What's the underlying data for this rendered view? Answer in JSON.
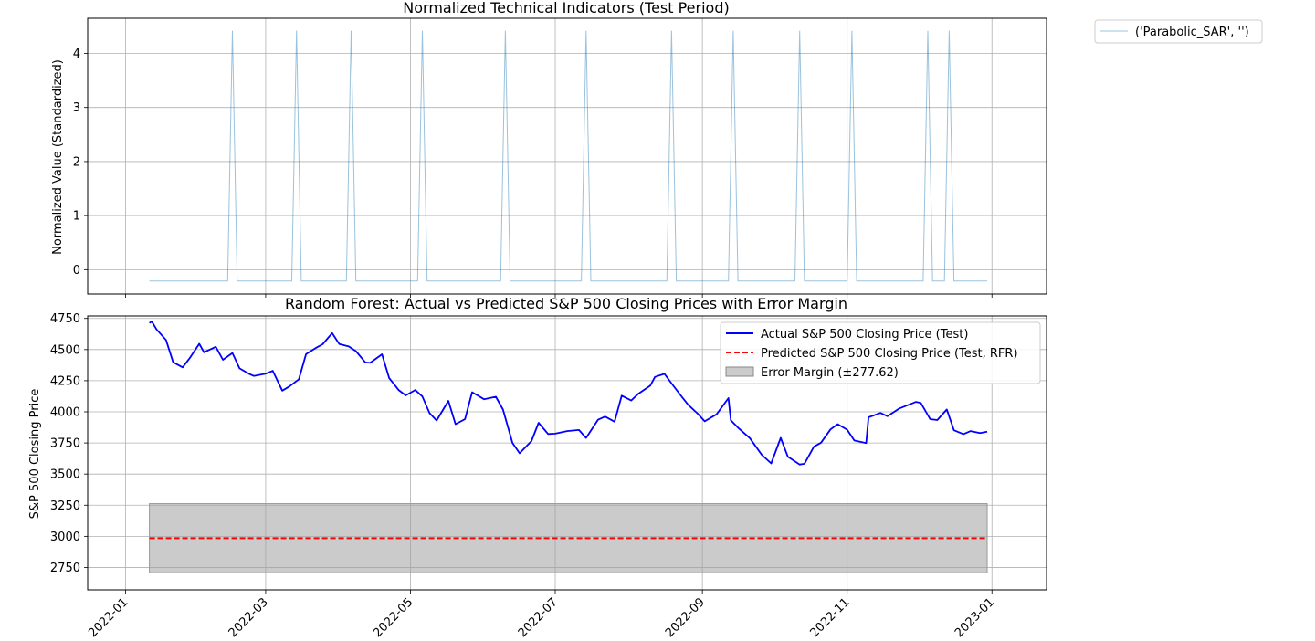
{
  "chart_data": [
    {
      "type": "line",
      "title": "Normalized Technical Indicators (Test Period)",
      "xlabel": "",
      "ylabel": "Normalized Value (Standardized)",
      "ylim": [
        -0.45,
        4.65
      ],
      "grid": true,
      "legend": "outside-top-right",
      "y_ticks": [
        0,
        1,
        2,
        3,
        4
      ],
      "y_tick_labels": [
        "0",
        "1",
        "2",
        "3",
        "4"
      ],
      "series": [
        {
          "name": "('Parabolic_SAR', '')",
          "color": "#1f77b4",
          "baseline": -0.21,
          "peak": 4.42,
          "spike_dates": [
            "2022-02-15",
            "2022-03-14",
            "2022-04-06",
            "2022-05-06",
            "2022-06-10",
            "2022-07-14",
            "2022-08-19",
            "2022-09-14",
            "2022-10-12",
            "2022-11-03",
            "2022-12-05",
            "2022-12-14"
          ],
          "x_start": "2022-01-11",
          "x_end": "2022-12-30"
        }
      ]
    },
    {
      "type": "line",
      "title": "Random Forest: Actual vs Predicted S&P 500 Closing Prices with Error Margin",
      "xlabel": "",
      "ylabel": "S&P 500 Closing Price",
      "ylim": [
        2570,
        4770
      ],
      "grid": true,
      "legend": "top-right",
      "y_ticks": [
        2750,
        3000,
        3250,
        3500,
        3750,
        4000,
        4250,
        4500,
        4750
      ],
      "y_tick_labels": [
        "2750",
        "3000",
        "3250",
        "3500",
        "3750",
        "4000",
        "4250",
        "4500",
        "4750"
      ],
      "x_ticks": [
        "2022-01-01",
        "2022-03-01",
        "2022-05-01",
        "2022-07-01",
        "2022-09-01",
        "2022-11-01",
        "2023-01-01"
      ],
      "x_tick_labels": [
        "2022-01",
        "2022-03",
        "2022-05",
        "2022-07",
        "2022-09",
        "2022-11",
        "2023-01"
      ],
      "x_start": "2022-01-11",
      "x_end": "2022-12-30",
      "series": [
        {
          "name": "Actual S&P 500 Closing Price (Test)",
          "color": "#0000ff",
          "style": "solid",
          "x": [
            "2022-01-11",
            "2022-01-12",
            "2022-01-14",
            "2022-01-18",
            "2022-01-21",
            "2022-01-25",
            "2022-01-28",
            "2022-02-01",
            "2022-02-03",
            "2022-02-08",
            "2022-02-11",
            "2022-02-15",
            "2022-02-18",
            "2022-02-22",
            "2022-02-24",
            "2022-03-01",
            "2022-03-04",
            "2022-03-08",
            "2022-03-11",
            "2022-03-15",
            "2022-03-18",
            "2022-03-22",
            "2022-03-25",
            "2022-03-29",
            "2022-04-01",
            "2022-04-05",
            "2022-04-08",
            "2022-04-12",
            "2022-04-14",
            "2022-04-19",
            "2022-04-22",
            "2022-04-26",
            "2022-04-29",
            "2022-05-03",
            "2022-05-06",
            "2022-05-09",
            "2022-05-12",
            "2022-05-17",
            "2022-05-20",
            "2022-05-24",
            "2022-05-27",
            "2022-06-01",
            "2022-06-06",
            "2022-06-09",
            "2022-06-13",
            "2022-06-16",
            "2022-06-21",
            "2022-06-24",
            "2022-06-28",
            "2022-07-01",
            "2022-07-06",
            "2022-07-11",
            "2022-07-14",
            "2022-07-19",
            "2022-07-22",
            "2022-07-26",
            "2022-07-29",
            "2022-08-02",
            "2022-08-05",
            "2022-08-10",
            "2022-08-12",
            "2022-08-16",
            "2022-08-19",
            "2022-08-23",
            "2022-08-26",
            "2022-08-30",
            "2022-09-02",
            "2022-09-07",
            "2022-09-12",
            "2022-09-13",
            "2022-09-16",
            "2022-09-21",
            "2022-09-26",
            "2022-09-30",
            "2022-10-04",
            "2022-10-07",
            "2022-10-12",
            "2022-10-14",
            "2022-10-18",
            "2022-10-21",
            "2022-10-25",
            "2022-10-28",
            "2022-11-01",
            "2022-11-04",
            "2022-11-09",
            "2022-11-10",
            "2022-11-15",
            "2022-11-18",
            "2022-11-23",
            "2022-11-30",
            "2022-12-02",
            "2022-12-06",
            "2022-12-09",
            "2022-12-13",
            "2022-12-16",
            "2022-12-20",
            "2022-12-23",
            "2022-12-27",
            "2022-12-30"
          ],
          "y": [
            4713,
            4726,
            4662,
            4577,
            4398,
            4357,
            4432,
            4546,
            4478,
            4522,
            4418,
            4472,
            4349,
            4305,
            4288,
            4306,
            4329,
            4170,
            4204,
            4262,
            4463,
            4512,
            4543,
            4632,
            4545,
            4525,
            4488,
            4397,
            4393,
            4462,
            4272,
            4175,
            4132,
            4175,
            4123,
            3991,
            3930,
            4088,
            3901,
            3941,
            4158,
            4101,
            4121,
            4018,
            3750,
            3667,
            3765,
            3912,
            3822,
            3825,
            3845,
            3854,
            3790,
            3936,
            3962,
            3921,
            4130,
            4091,
            4145,
            4210,
            4280,
            4305,
            4228,
            4128,
            4057,
            3986,
            3924,
            3980,
            4110,
            3932,
            3873,
            3789,
            3655,
            3586,
            3791,
            3640,
            3577,
            3583,
            3720,
            3752,
            3859,
            3901,
            3856,
            3770,
            3749,
            3956,
            3991,
            3965,
            4027,
            4080,
            4072,
            3941,
            3934,
            4019,
            3852,
            3821,
            3845,
            3829,
            3840
          ]
        },
        {
          "name": "Predicted S&P 500 Closing Price (Test, RFR)",
          "color": "#ff0000",
          "style": "dashed",
          "value": 2985
        },
        {
          "name": "Error Margin (±277.62)",
          "color": "#a0a0a0",
          "type": "area",
          "lower": 2707.38,
          "upper": 3262.62
        }
      ]
    }
  ]
}
